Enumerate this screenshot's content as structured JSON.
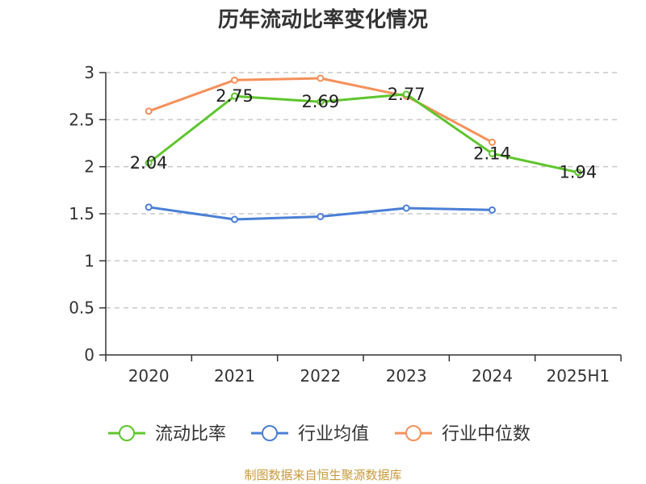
{
  "chart_data": {
    "type": "line",
    "title": "历年流动比率变化情况",
    "categories": [
      "2020",
      "2021",
      "2022",
      "2023",
      "2024",
      "2025H1"
    ],
    "ylim": [
      0,
      3
    ],
    "yticks": [
      "0",
      "0.5",
      "1",
      "1.5",
      "2",
      "2.5",
      "3"
    ],
    "grid": true,
    "legend_position": "bottom",
    "series": [
      {
        "name": "流动比率",
        "color": "#5ec52d",
        "values": [
          2.04,
          2.75,
          2.69,
          2.77,
          2.14,
          1.94
        ],
        "labels": [
          "2.04",
          "2.75",
          "2.69",
          "2.77",
          "2.14",
          "1.94"
        ]
      },
      {
        "name": "行业均值",
        "color": "#4a7fd6",
        "values": [
          1.57,
          1.44,
          1.47,
          1.56,
          1.54,
          null
        ]
      },
      {
        "name": "行业中位数",
        "color": "#f5905a",
        "values": [
          2.59,
          2.92,
          2.94,
          2.75,
          2.26,
          null
        ]
      }
    ]
  },
  "source_text": "制图数据来自恒生聚源数据库"
}
